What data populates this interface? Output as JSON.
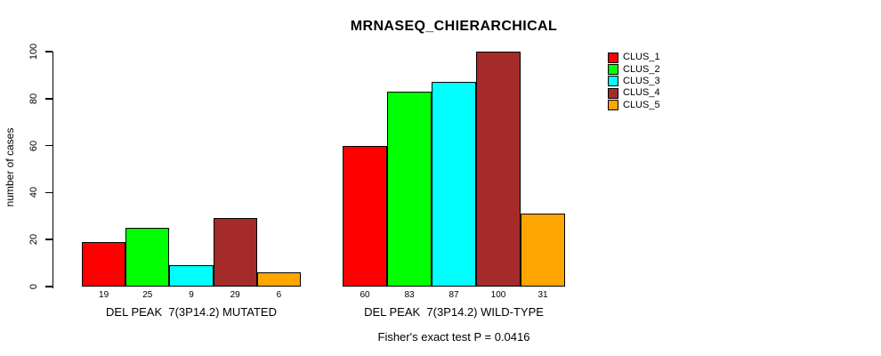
{
  "title": "MRNASEQ_CHIERARCHICAL",
  "y_axis": {
    "label": "number of cases",
    "ticks": [
      0,
      20,
      40,
      60,
      80,
      100
    ]
  },
  "caption": "Fisher's exact test P = 0.0416",
  "legend": {
    "items": [
      {
        "label": "CLUS_1",
        "color": "#FF0000"
      },
      {
        "label": "CLUS_2",
        "color": "#00FF00"
      },
      {
        "label": "CLUS_3",
        "color": "#00FFFF"
      },
      {
        "label": "CLUS_4",
        "color": "#A52A2A"
      },
      {
        "label": "CLUS_5",
        "color": "#FFA500"
      }
    ]
  },
  "chart_data": {
    "type": "bar",
    "title": "MRNASEQ_CHIERARCHICAL",
    "xlabel": "",
    "ylabel": "number of cases",
    "ylim": [
      0,
      100
    ],
    "yticks": [
      0,
      20,
      40,
      60,
      80,
      100
    ],
    "grid": false,
    "legend_position": "right",
    "categories": [
      "DEL PEAK  7(3P14.2) MUTATED",
      "DEL PEAK  7(3P14.2) WILD-TYPE"
    ],
    "series": [
      {
        "name": "CLUS_1",
        "color": "#FF0000",
        "values": [
          19,
          60
        ]
      },
      {
        "name": "CLUS_2",
        "color": "#00FF00",
        "values": [
          25,
          83
        ]
      },
      {
        "name": "CLUS_3",
        "color": "#00FFFF",
        "values": [
          9,
          87
        ]
      },
      {
        "name": "CLUS_4",
        "color": "#A52A2A",
        "values": [
          29,
          100
        ]
      },
      {
        "name": "CLUS_5",
        "color": "#FFA500",
        "values": [
          6,
          31
        ]
      }
    ],
    "bar_value_labels": [
      [
        19,
        25,
        9,
        29,
        6
      ],
      [
        60,
        83,
        87,
        100,
        31
      ]
    ],
    "annotation": "Fisher's exact test P = 0.0416"
  }
}
